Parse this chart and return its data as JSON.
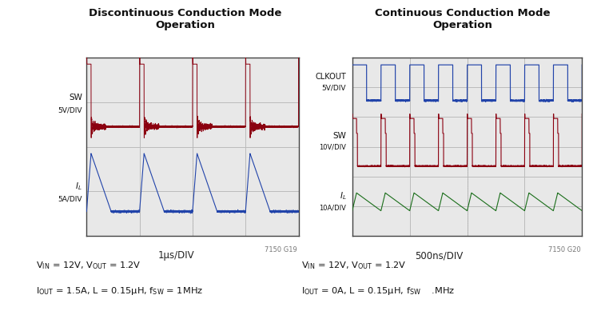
{
  "left_title": "Discontinuous Conduction Mode\nOperation",
  "right_title": "Continuous Conduction Mode\nOperation",
  "left_xlabel": "1μs/DIV",
  "right_xlabel": "500ns/DIV",
  "left_watermark": "7150 G19",
  "right_watermark": "7150 G20",
  "bg_color": "#ffffff",
  "plot_bg": "#e8e8e8",
  "grid_color": "#bbbbbb",
  "sw_color_left": "#8b0010",
  "il_color_left": "#2244aa",
  "clk_color_right": "#2244aa",
  "sw_color_right": "#8b0010",
  "il_color_right": "#1a6e1a",
  "n_pts": 8000
}
